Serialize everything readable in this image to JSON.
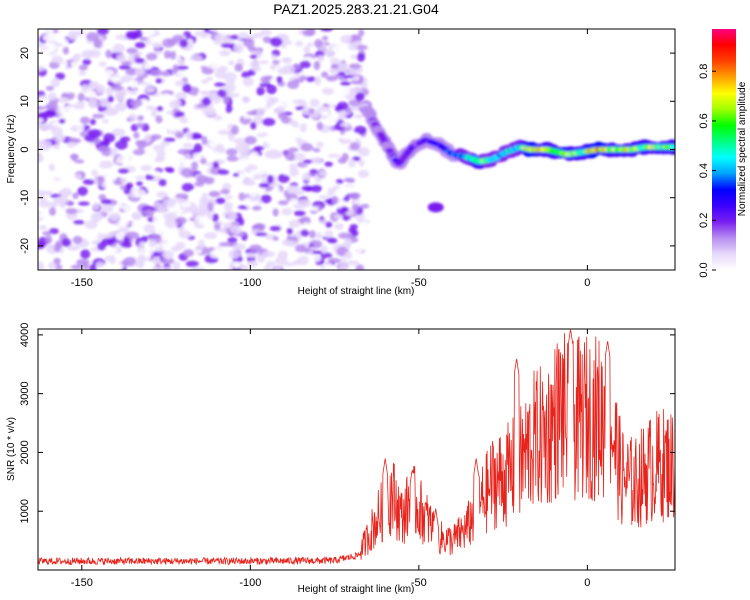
{
  "chart_data": [
    {
      "type": "heatmap",
      "title": "PAZ1.2025.283.21.21.G04",
      "xlabel": "Height of straight line (km)",
      "ylabel": "Frequency (Hz)",
      "xlim": [
        -163,
        26
      ],
      "ylim": [
        -25,
        25
      ],
      "xticks": [
        "-150",
        "-100",
        "-50",
        "0"
      ],
      "yticks": [
        "20",
        "10",
        "0",
        "-10",
        "-20"
      ],
      "grid": false,
      "colorbar": {
        "label": "Normalized spectral amplitude",
        "range": [
          0,
          0.97
        ],
        "ticks": [
          "0.0",
          "0.2",
          "0.4",
          "0.6",
          "0.8"
        ],
        "colors": [
          "#ffffff",
          "#e6d8fa",
          "#b78cf0",
          "#7a1ff0",
          "#3b00ff",
          "#0000ff",
          "#00a0ff",
          "#00ffff",
          "#00ff80",
          "#00ff00",
          "#a0ff00",
          "#ffff00",
          "#ffa000",
          "#ff4000",
          "#ff0000",
          "#ff0080"
        ]
      },
      "features": {
        "noise_region_x": [
          -163,
          -66
        ],
        "noise_frequency_range": [
          -25,
          25
        ],
        "noise_amplitude_range": [
          0.02,
          0.22
        ],
        "signal_track": [
          {
            "x": -66,
            "y": 9.0,
            "amp": 0.15
          },
          {
            "x": -62,
            "y": 4.0,
            "amp": 0.22
          },
          {
            "x": -58,
            "y": -1.0,
            "amp": 0.25
          },
          {
            "x": -56,
            "y": -3.0,
            "amp": 0.28
          },
          {
            "x": -52,
            "y": 0.5,
            "amp": 0.25
          },
          {
            "x": -48,
            "y": 2.0,
            "amp": 0.32
          },
          {
            "x": -44,
            "y": 1.0,
            "amp": 0.36
          },
          {
            "x": -40,
            "y": -1.0,
            "amp": 0.4
          },
          {
            "x": -36,
            "y": -1.5,
            "amp": 0.55
          },
          {
            "x": -32,
            "y": -2.5,
            "amp": 0.75
          },
          {
            "x": -28,
            "y": -2.0,
            "amp": 0.5
          },
          {
            "x": -24,
            "y": -0.5,
            "amp": 0.5
          },
          {
            "x": -20,
            "y": 0.5,
            "amp": 0.55
          },
          {
            "x": -17,
            "y": 0.0,
            "amp": 0.9
          },
          {
            "x": -12,
            "y": 0.0,
            "amp": 0.75
          },
          {
            "x": -6,
            "y": -1.0,
            "amp": 0.85
          },
          {
            "x": -1,
            "y": -0.5,
            "amp": 0.7
          },
          {
            "x": 3,
            "y": 0.0,
            "amp": 0.95
          },
          {
            "x": 8,
            "y": 0.0,
            "amp": 0.75
          },
          {
            "x": 13,
            "y": 0.0,
            "amp": 0.8
          },
          {
            "x": 17,
            "y": 0.5,
            "amp": 0.75
          },
          {
            "x": 22,
            "y": 0.5,
            "amp": 0.7
          },
          {
            "x": 26,
            "y": 0.5,
            "amp": 0.65
          }
        ],
        "secondary_blob": {
          "x": -45,
          "y": -12,
          "amp": 0.2
        }
      }
    },
    {
      "type": "line",
      "xlabel": "Height of straight line (km)",
      "ylabel": "SNR (10 * v/v)",
      "xlim": [
        -163,
        26
      ],
      "ylim": [
        0,
        4100
      ],
      "xticks": [
        "-150",
        "-100",
        "-50",
        "0"
      ],
      "yticks": [
        "4000",
        "3000",
        "2000",
        "1000"
      ],
      "grid": false,
      "color": "#e8231c",
      "series_envelope": [
        {
          "x": -163,
          "y": 150
        },
        {
          "x": -100,
          "y": 150
        },
        {
          "x": -75,
          "y": 160
        },
        {
          "x": -68,
          "y": 250
        },
        {
          "x": -62,
          "y": 900
        },
        {
          "x": -58,
          "y": 1300
        },
        {
          "x": -55,
          "y": 900
        },
        {
          "x": -52,
          "y": 1200
        },
        {
          "x": -48,
          "y": 900
        },
        {
          "x": -44,
          "y": 550
        },
        {
          "x": -40,
          "y": 500
        },
        {
          "x": -36,
          "y": 700
        },
        {
          "x": -32,
          "y": 1100
        },
        {
          "x": -28,
          "y": 1500
        },
        {
          "x": -24,
          "y": 1600
        },
        {
          "x": -20,
          "y": 1800
        },
        {
          "x": -16,
          "y": 2200
        },
        {
          "x": -12,
          "y": 2300
        },
        {
          "x": -8,
          "y": 2700
        },
        {
          "x": -5,
          "y": 2500
        },
        {
          "x": -1,
          "y": 2600
        },
        {
          "x": 3,
          "y": 2600
        },
        {
          "x": 7,
          "y": 2500
        },
        {
          "x": 10,
          "y": 1600
        },
        {
          "x": 14,
          "y": 1450
        },
        {
          "x": 18,
          "y": 1700
        },
        {
          "x": 22,
          "y": 1800
        },
        {
          "x": 26,
          "y": 1800
        }
      ],
      "peaks": [
        {
          "x": -60,
          "y": 1900
        },
        {
          "x": -52,
          "y": 1700
        },
        {
          "x": -45,
          "y": 1050
        },
        {
          "x": -33,
          "y": 1900
        },
        {
          "x": -21,
          "y": 3600
        },
        {
          "x": -5,
          "y": 4100
        },
        {
          "x": 6,
          "y": 3900
        }
      ]
    }
  ]
}
